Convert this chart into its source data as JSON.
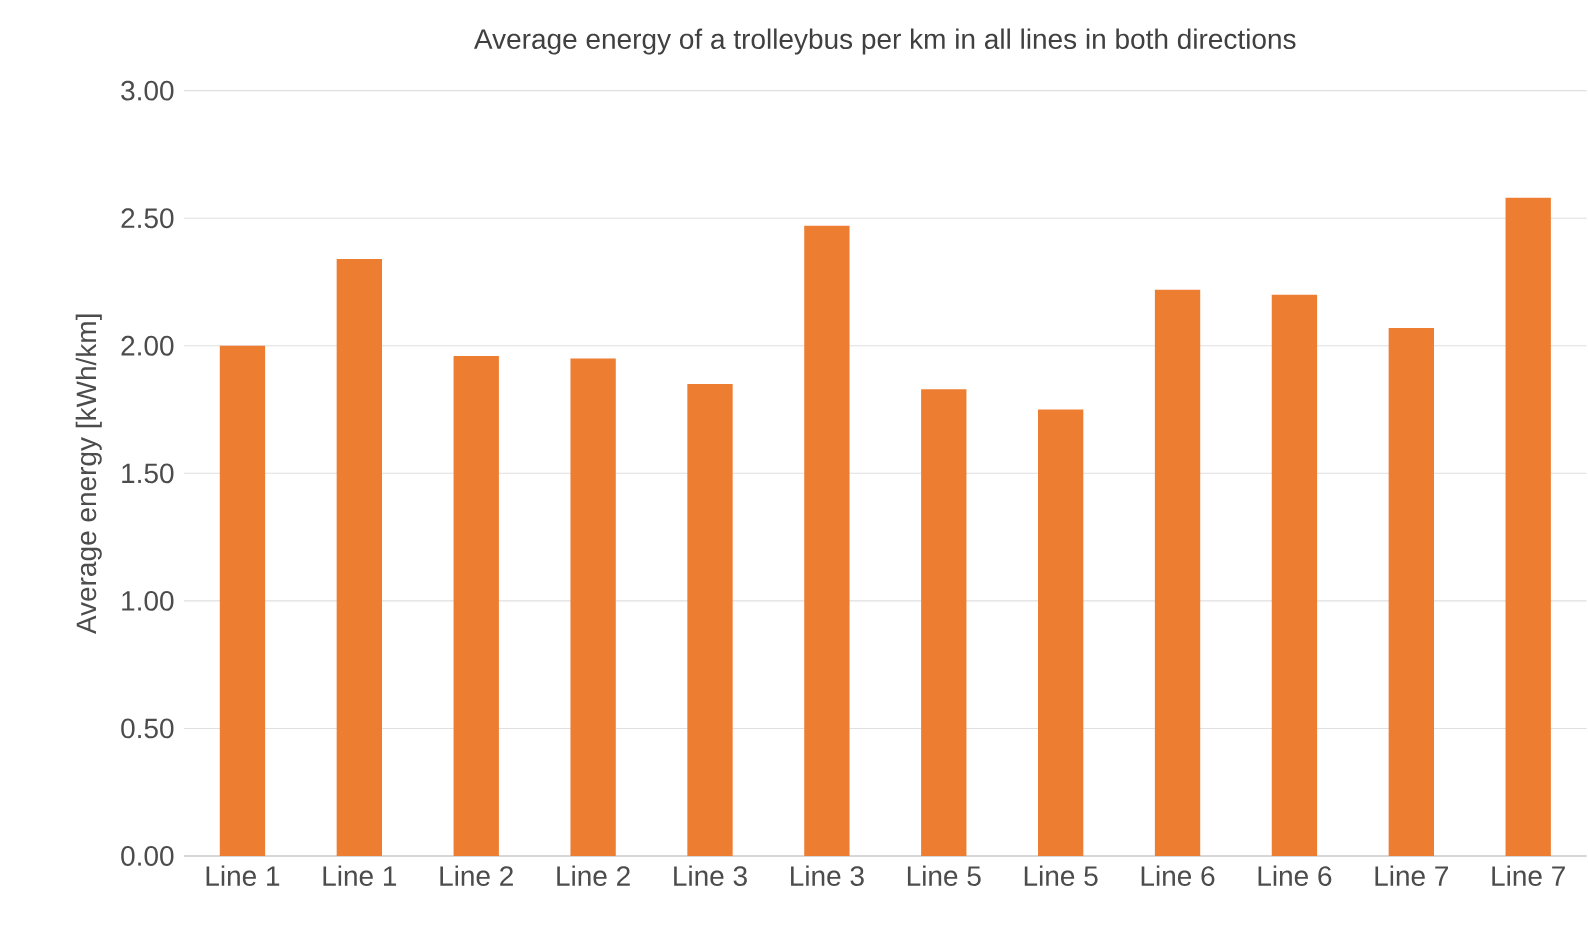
{
  "chart_data": {
    "type": "bar",
    "title": "Average energy of a trolleybus per km in all lines in both directions",
    "ylabel": "Average energy [kWh/km]",
    "categories": [
      "Line 1",
      "Line 1",
      "Line 2",
      "Line 2",
      "Line 3",
      "Line 3",
      "Line 5",
      "Line 5",
      "Line 6",
      "Line 6",
      "Line 7",
      "Line 7"
    ],
    "values": [
      2.0,
      2.34,
      1.96,
      1.95,
      1.85,
      2.47,
      1.83,
      1.75,
      2.22,
      2.2,
      2.07,
      2.58
    ],
    "color": "#ed7d31",
    "ylim": [
      0,
      3
    ],
    "yticks": [
      {
        "value": 0,
        "label": "0.00"
      },
      {
        "value": 0.5,
        "label": "0.50"
      },
      {
        "value": 1,
        "label": "1.00"
      },
      {
        "value": 1.5,
        "label": "1.50"
      },
      {
        "value": 2,
        "label": "2.00"
      },
      {
        "value": 2.5,
        "label": "2.50"
      },
      {
        "value": 3,
        "label": "3.00"
      }
    ],
    "grid": "y"
  }
}
